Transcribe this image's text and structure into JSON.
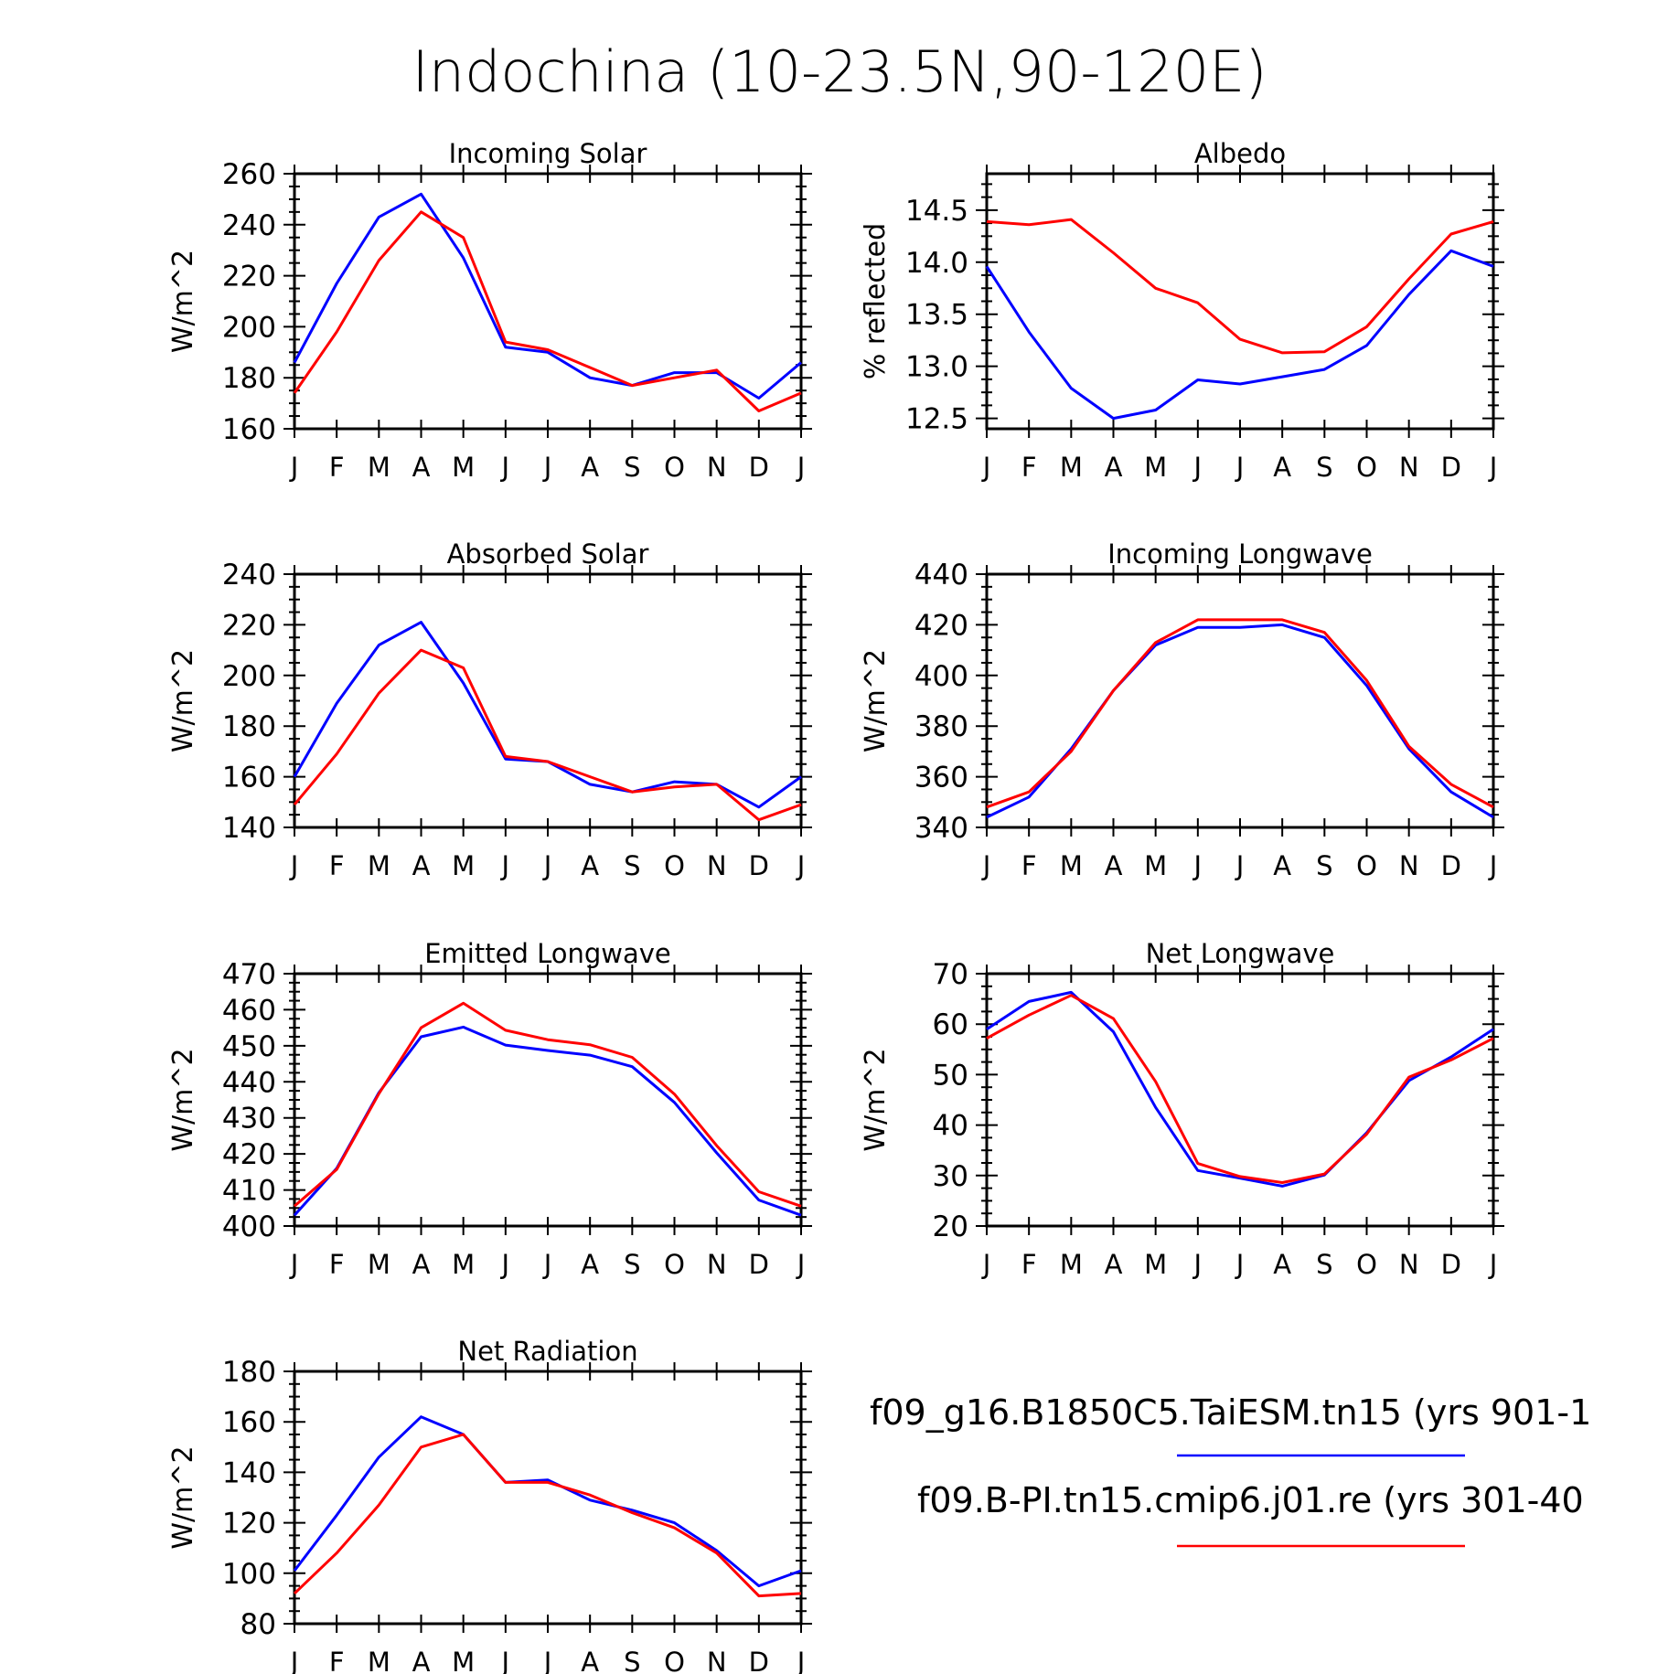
{
  "figure": {
    "title": "Indochina (10-23.5N,90-120E)"
  },
  "legend": {
    "entries": [
      {
        "label": "f09_g16.B1850C5.TaiESM.tn15 (yrs 901-1",
        "color": "#0000ff"
      },
      {
        "label": "f09.B-PI.tn15.cmip6.j01.re (yrs 301-40",
        "color": "#ff0000"
      }
    ]
  },
  "chart_data": [
    {
      "type": "line",
      "title": "Incoming Solar",
      "ylabel": "W/m^2",
      "ylim": [
        160,
        260
      ],
      "yticks": [
        "160",
        "180",
        "200",
        "220",
        "240",
        "260"
      ],
      "categories": [
        "J",
        "F",
        "M",
        "A",
        "M",
        "J",
        "J",
        "A",
        "S",
        "O",
        "N",
        "D",
        "J"
      ],
      "series": [
        {
          "color": "#0000ff",
          "values": [
            186,
            217,
            243,
            252,
            227,
            192,
            190,
            180,
            177,
            182,
            182,
            172,
            186
          ]
        },
        {
          "color": "#ff0000",
          "values": [
            174,
            198,
            226,
            245,
            235,
            194,
            191,
            184,
            177,
            180,
            183,
            167,
            174
          ]
        }
      ]
    },
    {
      "type": "line",
      "title": "Albedo",
      "ylabel": "% reflected",
      "ylim": [
        12.4,
        14.85
      ],
      "yticks": [
        "12.5",
        "13.0",
        "13.5",
        "14.0",
        "14.5"
      ],
      "categories": [
        "J",
        "F",
        "M",
        "A",
        "M",
        "J",
        "J",
        "A",
        "S",
        "O",
        "N",
        "D",
        "J"
      ],
      "series": [
        {
          "color": "#0000ff",
          "values": [
            13.96,
            13.33,
            12.79,
            12.5,
            12.58,
            12.87,
            12.83,
            12.9,
            12.97,
            13.2,
            13.69,
            14.11,
            13.96
          ]
        },
        {
          "color": "#ff0000",
          "values": [
            14.39,
            14.36,
            14.41,
            14.09,
            13.75,
            13.61,
            13.26,
            13.13,
            13.14,
            13.38,
            13.84,
            14.27,
            14.39
          ]
        }
      ]
    },
    {
      "type": "line",
      "title": "Absorbed Solar",
      "ylabel": "W/m^2",
      "ylim": [
        140,
        240
      ],
      "yticks": [
        "140",
        "160",
        "180",
        "200",
        "220",
        "240"
      ],
      "categories": [
        "J",
        "F",
        "M",
        "A",
        "M",
        "J",
        "J",
        "A",
        "S",
        "O",
        "N",
        "D",
        "J"
      ],
      "series": [
        {
          "color": "#0000ff",
          "values": [
            160,
            189,
            212,
            221,
            197,
            167,
            166,
            157,
            154,
            158,
            157,
            148,
            160
          ]
        },
        {
          "color": "#ff0000",
          "values": [
            149,
            169,
            193,
            210,
            203,
            168,
            166,
            160,
            154,
            156,
            157,
            143,
            149
          ]
        }
      ]
    },
    {
      "type": "line",
      "title": "Incoming Longwave",
      "ylabel": "W/m^2",
      "ylim": [
        340,
        440
      ],
      "yticks": [
        "340",
        "360",
        "380",
        "400",
        "420",
        "440"
      ],
      "categories": [
        "J",
        "F",
        "M",
        "A",
        "M",
        "J",
        "J",
        "A",
        "S",
        "O",
        "N",
        "D",
        "J"
      ],
      "series": [
        {
          "color": "#0000ff",
          "values": [
            344,
            352,
            371,
            394,
            412,
            419,
            419,
            420,
            415,
            396,
            371,
            354,
            344
          ]
        },
        {
          "color": "#ff0000",
          "values": [
            348,
            354,
            370,
            394,
            413,
            422,
            422,
            422,
            417,
            398,
            372,
            357,
            348
          ]
        }
      ]
    },
    {
      "type": "line",
      "title": "Emitted Longwave",
      "ylabel": "W/m^2",
      "ylim": [
        400,
        470
      ],
      "yticks": [
        "400",
        "410",
        "420",
        "430",
        "440",
        "450",
        "460",
        "470"
      ],
      "categories": [
        "J",
        "F",
        "M",
        "A",
        "M",
        "J",
        "J",
        "A",
        "S",
        "O",
        "N",
        "D",
        "J"
      ],
      "series": [
        {
          "color": "#0000ff",
          "values": [
            403,
            416,
            437,
            452.5,
            455.2,
            450.2,
            448.7,
            447.4,
            444.2,
            434.3,
            420.3,
            407.2,
            403
          ]
        },
        {
          "color": "#ff0000",
          "values": [
            405.5,
            415.7,
            436.7,
            455,
            461.8,
            454.3,
            451.7,
            450.3,
            446.8,
            436.6,
            422.3,
            409.5,
            405.5
          ]
        }
      ]
    },
    {
      "type": "line",
      "title": "Net Longwave",
      "ylabel": "W/m^2",
      "ylim": [
        20,
        70
      ],
      "yticks": [
        "20",
        "30",
        "40",
        "50",
        "60",
        "70"
      ],
      "categories": [
        "J",
        "F",
        "M",
        "A",
        "M",
        "J",
        "J",
        "A",
        "S",
        "O",
        "N",
        "D",
        "J"
      ],
      "series": [
        {
          "color": "#0000ff",
          "values": [
            59,
            64.5,
            66.3,
            58.5,
            43.5,
            31,
            29.5,
            27.9,
            30.1,
            38.5,
            48.8,
            53.5,
            59
          ]
        },
        {
          "color": "#ff0000",
          "values": [
            57.2,
            61.8,
            65.7,
            61.1,
            48.6,
            32.4,
            29.8,
            28.6,
            30.3,
            38.2,
            49.5,
            52.9,
            57.2
          ]
        }
      ]
    },
    {
      "type": "line",
      "title": "Net Radiation",
      "ylabel": "W/m^2",
      "ylim": [
        80,
        180
      ],
      "yticks": [
        "80",
        "100",
        "120",
        "140",
        "160",
        "180"
      ],
      "categories": [
        "J",
        "F",
        "M",
        "A",
        "M",
        "J",
        "J",
        "A",
        "S",
        "O",
        "N",
        "D",
        "J"
      ],
      "series": [
        {
          "color": "#0000ff",
          "values": [
            101,
            123,
            146,
            162,
            155,
            136,
            137,
            129,
            125,
            120,
            109,
            95,
            101
          ]
        },
        {
          "color": "#ff0000",
          "values": [
            92,
            108,
            127,
            150,
            155,
            136,
            136,
            131,
            124,
            118,
            108,
            91,
            92
          ]
        }
      ]
    }
  ]
}
